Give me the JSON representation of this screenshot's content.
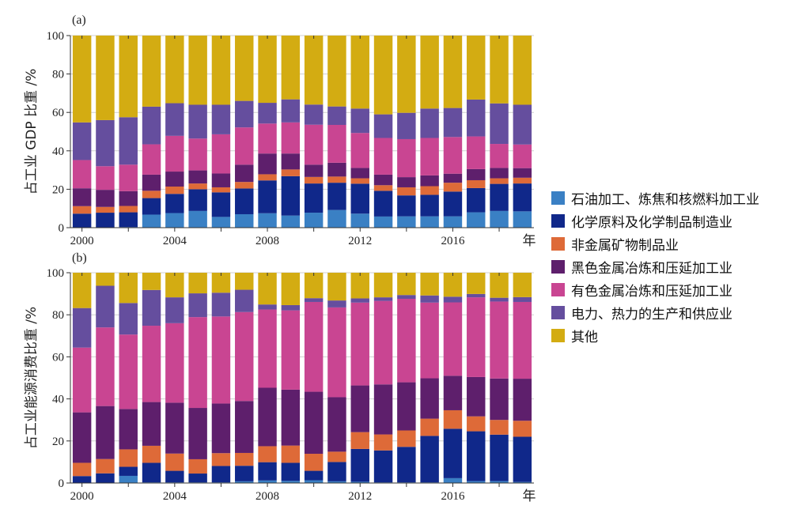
{
  "chart_data": [
    {
      "type": "bar",
      "stacked": true,
      "panel_label": "(a)",
      "ylabel": "占工业 GDP 比重 /%",
      "xlabel": "年",
      "ylim": [
        0,
        100
      ],
      "yticks": [
        0,
        20,
        40,
        60,
        80,
        100
      ],
      "xtick_labels": [
        "2000",
        "2004",
        "2008",
        "2012",
        "2016"
      ],
      "categories": [
        2000,
        2001,
        2002,
        2003,
        2004,
        2005,
        2006,
        2007,
        2008,
        2009,
        2010,
        2011,
        2012,
        2013,
        2014,
        2015,
        2016,
        2017,
        2018,
        2019
      ],
      "series": [
        {
          "name": "石油加工、炼焦和核燃料加工业",
          "color": "#3a80c4",
          "values": [
            0,
            0,
            0.3,
            6.8,
            7.6,
            8.7,
            5.6,
            7.0,
            7.5,
            6.3,
            7.8,
            9.2,
            7.3,
            5.8,
            5.9,
            5.9,
            5.9,
            8.0,
            8.7,
            8.5
          ]
        },
        {
          "name": "化学原料及化学制品制造业",
          "color": "#10288a",
          "values": [
            7.3,
            7.8,
            7.7,
            8.6,
            10.0,
            11.3,
            12.8,
            13.4,
            17.1,
            20.5,
            15.2,
            14.2,
            15.6,
            13.4,
            10.9,
            11.2,
            12.9,
            12.6,
            14.1,
            14.5
          ]
        },
        {
          "name": "非金属矿物制品业",
          "color": "#de6a38",
          "values": [
            3.9,
            3.0,
            3.3,
            3.8,
            3.8,
            3.0,
            2.6,
            3.4,
            3.2,
            3.5,
            3.4,
            3.2,
            2.8,
            2.9,
            4.2,
            4.5,
            4.6,
            4.1,
            2.9,
            3.0
          ]
        },
        {
          "name": "黑色金属冶炼和压延加工业",
          "color": "#5e1f6c",
          "values": [
            9.3,
            8.9,
            7.7,
            8.4,
            7.8,
            6.8,
            7.2,
            9.0,
            10.8,
            8.3,
            6.4,
            7.2,
            5.4,
            5.5,
            5.3,
            5.6,
            4.7,
            5.8,
            5.4,
            5.0
          ]
        },
        {
          "name": "有色金属冶炼和压延加工业",
          "color": "#c94592",
          "values": [
            14.7,
            12.3,
            13.8,
            15.8,
            18.6,
            16.6,
            20.4,
            19.4,
            15.6,
            16.2,
            20.8,
            19.7,
            18.2,
            19.1,
            19.8,
            19.5,
            19.1,
            17.0,
            12.5,
            12.3
          ]
        },
        {
          "name": "电力、热力的生产和供应业",
          "color": "#654e9e",
          "values": [
            19.6,
            24.0,
            24.7,
            19.6,
            17.0,
            17.6,
            15.4,
            13.8,
            10.8,
            12.0,
            10.5,
            9.6,
            12.7,
            12.3,
            13.7,
            15.3,
            15.1,
            19.2,
            21.1,
            20.7
          ]
        },
        {
          "name": "其他",
          "color": "#d3ac12",
          "values": [
            45.2,
            44.0,
            42.5,
            37.0,
            35.2,
            36.0,
            36.0,
            34.0,
            35.0,
            33.2,
            35.9,
            36.9,
            38.0,
            41.0,
            40.2,
            38.0,
            37.7,
            33.3,
            35.3,
            36.0
          ]
        }
      ]
    },
    {
      "type": "bar",
      "stacked": true,
      "panel_label": "(b)",
      "ylabel": "占工业能源消费比重 /%",
      "xlabel": "年",
      "ylim": [
        0,
        100
      ],
      "yticks": [
        0,
        20,
        40,
        60,
        80,
        100
      ],
      "xtick_labels": [
        "2000",
        "2004",
        "2008",
        "2012",
        "2016"
      ],
      "categories": [
        2000,
        2001,
        2002,
        2003,
        2004,
        2005,
        2006,
        2007,
        2008,
        2009,
        2010,
        2011,
        2012,
        2013,
        2014,
        2015,
        2016,
        2017,
        2018,
        2019
      ],
      "series": [
        {
          "name": "石油加工、炼焦和核燃料加工业",
          "color": "#3a80c4",
          "values": [
            0,
            0,
            3.4,
            0.3,
            0.3,
            0.3,
            0.3,
            0.8,
            1.2,
            1.0,
            1.3,
            0.8,
            0.6,
            0.3,
            0.3,
            0.3,
            2.3,
            0.9,
            0.9,
            0.5
          ]
        },
        {
          "name": "化学原料及化学制品制造业",
          "color": "#10288a",
          "values": [
            3.3,
            4.6,
            4.3,
            9.3,
            5.5,
            4.2,
            7.8,
            7.4,
            8.7,
            8.6,
            4.5,
            9.2,
            15.6,
            15.2,
            16.9,
            22.1,
            23.5,
            23.7,
            22.1,
            21.5
          ]
        },
        {
          "name": "非金属矿物制品业",
          "color": "#de6a38",
          "values": [
            6.3,
            6.8,
            8.3,
            8.1,
            8.2,
            6.8,
            6.1,
            6.1,
            7.6,
            8.2,
            8.1,
            4.9,
            8.0,
            7.6,
            7.8,
            8.2,
            8.8,
            7.1,
            7.0,
            7.6
          ]
        },
        {
          "name": "黑色金属冶炼和压延加工业",
          "color": "#5e1f6c",
          "values": [
            24.0,
            25.2,
            19.2,
            20.8,
            24.2,
            24.4,
            23.6,
            24.7,
            27.8,
            26.6,
            29.5,
            25.9,
            22.2,
            23.8,
            22.9,
            19.2,
            16.4,
            18.7,
            19.7,
            20.0
          ]
        },
        {
          "name": "有色金属冶炼和压延加工业",
          "color": "#c94592",
          "values": [
            30.8,
            37.4,
            35.4,
            36.3,
            37.8,
            43.2,
            41.4,
            42.3,
            37.2,
            37.7,
            42.7,
            42.7,
            39.4,
            39.7,
            39.7,
            36.0,
            34.9,
            37.9,
            36.6,
            36.5
          ]
        },
        {
          "name": "电力、热力的生产和供应业",
          "color": "#654e9e",
          "values": [
            18.8,
            19.8,
            15.0,
            17.0,
            12.3,
            11.3,
            11.3,
            10.6,
            2.4,
            2.5,
            1.8,
            3.3,
            2.0,
            1.7,
            1.8,
            3.4,
            2.7,
            1.6,
            1.8,
            2.3
          ]
        },
        {
          "name": "其他",
          "color": "#d3ac12",
          "values": [
            16.8,
            6.2,
            14.4,
            8.2,
            11.7,
            9.8,
            9.5,
            8.1,
            15.1,
            15.4,
            12.1,
            13.2,
            12.2,
            11.7,
            10.6,
            10.8,
            11.4,
            10.1,
            11.9,
            11.6
          ]
        }
      ]
    }
  ],
  "legend": {
    "items": [
      {
        "label": "石油加工、炼焦和核燃料加工业",
        "color": "#3a80c4"
      },
      {
        "label": "化学原料及化学制品制造业",
        "color": "#10288a"
      },
      {
        "label": "非金属矿物制品业",
        "color": "#de6a38"
      },
      {
        "label": "黑色金属冶炼和压延加工业",
        "color": "#5e1f6c"
      },
      {
        "label": "有色金属冶炼和压延加工业",
        "color": "#c94592"
      },
      {
        "label": "电力、热力的生产和供应业",
        "color": "#654e9e"
      },
      {
        "label": "其他",
        "color": "#d3ac12"
      }
    ]
  }
}
